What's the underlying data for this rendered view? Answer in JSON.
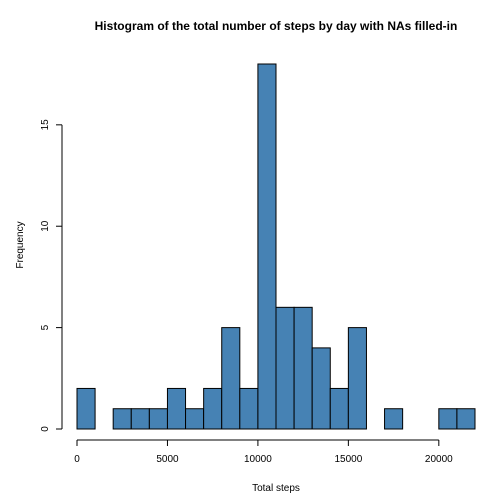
{
  "chart_data": {
    "type": "bar",
    "title": "Histogram of the total number of steps by day with NAs filled-in",
    "xlabel": "Total steps",
    "ylabel": "Frequency",
    "bin_width": 1000,
    "bins": [
      {
        "start": 0,
        "end": 1000,
        "count": 2
      },
      {
        "start": 1000,
        "end": 2000,
        "count": 0
      },
      {
        "start": 2000,
        "end": 3000,
        "count": 1
      },
      {
        "start": 3000,
        "end": 4000,
        "count": 1
      },
      {
        "start": 4000,
        "end": 5000,
        "count": 1
      },
      {
        "start": 5000,
        "end": 6000,
        "count": 2
      },
      {
        "start": 6000,
        "end": 7000,
        "count": 1
      },
      {
        "start": 7000,
        "end": 8000,
        "count": 2
      },
      {
        "start": 8000,
        "end": 9000,
        "count": 5
      },
      {
        "start": 9000,
        "end": 10000,
        "count": 2
      },
      {
        "start": 10000,
        "end": 11000,
        "count": 18
      },
      {
        "start": 11000,
        "end": 12000,
        "count": 6
      },
      {
        "start": 12000,
        "end": 13000,
        "count": 6
      },
      {
        "start": 13000,
        "end": 14000,
        "count": 4
      },
      {
        "start": 14000,
        "end": 15000,
        "count": 2
      },
      {
        "start": 15000,
        "end": 16000,
        "count": 5
      },
      {
        "start": 16000,
        "end": 17000,
        "count": 0
      },
      {
        "start": 17000,
        "end": 18000,
        "count": 1
      },
      {
        "start": 18000,
        "end": 19000,
        "count": 0
      },
      {
        "start": 19000,
        "end": 20000,
        "count": 0
      },
      {
        "start": 20000,
        "end": 21000,
        "count": 1
      },
      {
        "start": 21000,
        "end": 22000,
        "count": 1
      }
    ],
    "xlim": [
      0,
      22000
    ],
    "ylim": [
      0,
      18
    ],
    "xticks": [
      0,
      5000,
      10000,
      15000,
      20000
    ],
    "yticks": [
      0,
      5,
      10,
      15
    ],
    "bar_color": "#4682B4",
    "grid": false,
    "legend": "none"
  }
}
